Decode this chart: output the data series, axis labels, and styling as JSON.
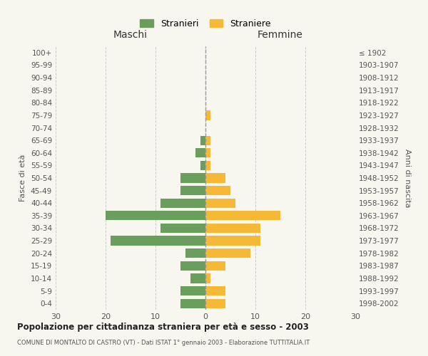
{
  "age_groups": [
    "0-4",
    "5-9",
    "10-14",
    "15-19",
    "20-24",
    "25-29",
    "30-34",
    "35-39",
    "40-44",
    "45-49",
    "50-54",
    "55-59",
    "60-64",
    "65-69",
    "70-74",
    "75-79",
    "80-84",
    "85-89",
    "90-94",
    "95-99",
    "100+"
  ],
  "birth_years": [
    "1998-2002",
    "1993-1997",
    "1988-1992",
    "1983-1987",
    "1978-1982",
    "1973-1977",
    "1968-1972",
    "1963-1967",
    "1958-1962",
    "1953-1957",
    "1948-1952",
    "1943-1947",
    "1938-1942",
    "1933-1937",
    "1928-1932",
    "1923-1927",
    "1918-1922",
    "1913-1917",
    "1908-1912",
    "1903-1907",
    "≤ 1902"
  ],
  "males": [
    5,
    5,
    3,
    5,
    4,
    19,
    9,
    20,
    9,
    5,
    5,
    1,
    2,
    1,
    0,
    0,
    0,
    0,
    0,
    0,
    0
  ],
  "females": [
    4,
    4,
    1,
    4,
    9,
    11,
    11,
    15,
    6,
    5,
    4,
    1,
    1,
    1,
    0,
    1,
    0,
    0,
    0,
    0,
    0
  ],
  "male_color": "#6a9e5c",
  "female_color": "#f5b935",
  "background_color": "#f7f7f0",
  "grid_color": "#cccccc",
  "title": "Popolazione per cittadinanza straniera per età e sesso - 2003",
  "subtitle": "COMUNE DI MONTALTO DI CASTRO (VT) - Dati ISTAT 1° gennaio 2003 - Elaborazione TUTTITALIA.IT",
  "xlabel_left": "Maschi",
  "xlabel_right": "Femmine",
  "ylabel_left": "Fasce di età",
  "ylabel_right": "Anni di nascita",
  "legend_male": "Stranieri",
  "legend_female": "Straniere",
  "xlim": 30,
  "bar_height": 0.75
}
